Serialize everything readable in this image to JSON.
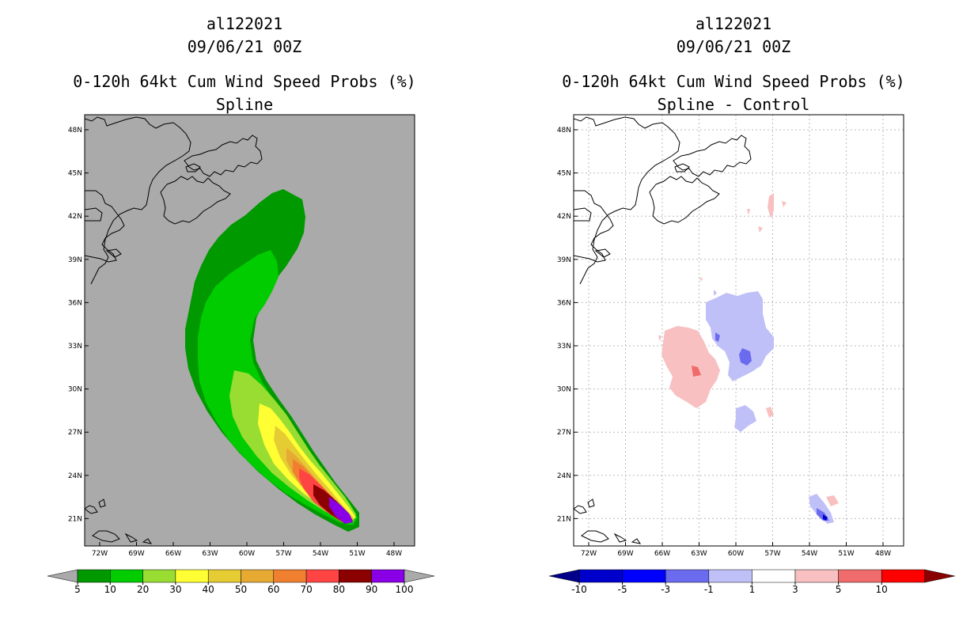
{
  "left_panel": {
    "storm_id": "al122021",
    "datetime": "09/06/21 00Z",
    "product": "0-120h 64kt Cum Wind Speed Probs (%)",
    "subtitle": "Spline",
    "lat_labels": [
      "48N",
      "45N",
      "42N",
      "39N",
      "36N",
      "33N",
      "30N",
      "27N",
      "24N",
      "21N"
    ],
    "lon_labels": [
      "72W",
      "69W",
      "66W",
      "63W",
      "60W",
      "57W",
      "54W",
      "51W",
      "48W"
    ],
    "colorbar": {
      "labels": [
        "5",
        "10",
        "20",
        "30",
        "40",
        "50",
        "60",
        "70",
        "80",
        "90",
        "100"
      ],
      "colors": [
        "#009900",
        "#00cc00",
        "#99dd33",
        "#ffff33",
        "#e6cc33",
        "#e6aa33",
        "#f08030",
        "#ff4444",
        "#8b0000",
        "#8a00e6"
      ],
      "end_color": "#aaaaaa"
    },
    "background_color": "#aaaaaa"
  },
  "right_panel": {
    "storm_id": "al122021",
    "datetime": "09/06/21 00Z",
    "product": "0-120h 64kt Cum Wind Speed Probs (%)",
    "subtitle": "Spline - Control",
    "lat_labels": [
      "48N",
      "45N",
      "42N",
      "39N",
      "36N",
      "33N",
      "30N",
      "27N",
      "24N",
      "21N"
    ],
    "lon_labels": [
      "72W",
      "69W",
      "66W",
      "63W",
      "60W",
      "57W",
      "54W",
      "51W",
      "48W"
    ],
    "colorbar": {
      "labels": [
        "-10",
        "-5",
        "-3",
        "-1",
        "1",
        "3",
        "5",
        "10"
      ],
      "colors": [
        "#0000cc",
        "#0000ff",
        "#6b6bf0",
        "#c0c0f8",
        "#ffffff",
        "#f8c0c0",
        "#f06b6b",
        "#ff0000"
      ],
      "left_color": "#00008b",
      "right_color": "#8b0000"
    },
    "background_color": "#ffffff"
  }
}
